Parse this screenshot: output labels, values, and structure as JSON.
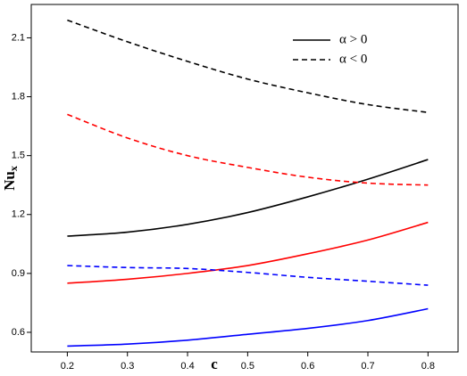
{
  "chart_data": {
    "type": "line",
    "xlabel": "c",
    "ylabel": {
      "text": "Nu",
      "subscript": "x"
    },
    "x": [
      0.2,
      0.3,
      0.4,
      0.5,
      0.6,
      0.7,
      0.8
    ],
    "series": [
      {
        "color": "#000000",
        "dashed": false,
        "values": [
          1.09,
          1.11,
          1.15,
          1.21,
          1.29,
          1.38,
          1.48
        ]
      },
      {
        "color": "#000000",
        "dashed": true,
        "values": [
          2.19,
          2.08,
          1.98,
          1.89,
          1.82,
          1.76,
          1.72
        ]
      },
      {
        "color": "#ff0000",
        "dashed": false,
        "values": [
          0.85,
          0.87,
          0.9,
          0.94,
          1.0,
          1.07,
          1.16
        ]
      },
      {
        "color": "#ff0000",
        "dashed": true,
        "values": [
          1.71,
          1.59,
          1.5,
          1.44,
          1.39,
          1.36,
          1.35
        ]
      },
      {
        "color": "#0000ff",
        "dashed": false,
        "values": [
          0.53,
          0.54,
          0.56,
          0.59,
          0.62,
          0.66,
          0.72
        ]
      },
      {
        "color": "#0000ff",
        "dashed": true,
        "values": [
          0.94,
          0.93,
          0.925,
          0.905,
          0.88,
          0.86,
          0.84
        ]
      }
    ],
    "legend": [
      {
        "label": "α > 0",
        "color": "#000000",
        "dashed": false
      },
      {
        "label": "α < 0",
        "color": "#000000",
        "dashed": true
      }
    ],
    "xlim": [
      0.14,
      0.85
    ],
    "ylim": [
      0.5,
      2.27
    ],
    "xticks": [
      0.2,
      0.3,
      0.4,
      0.5,
      0.6,
      0.7,
      0.8
    ],
    "yticks": [
      0.6,
      0.9,
      1.2,
      1.5,
      1.8,
      2.1
    ]
  }
}
